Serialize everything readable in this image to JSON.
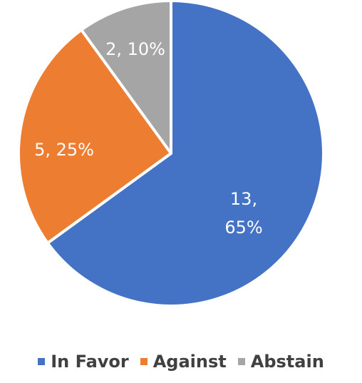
{
  "chart_data": {
    "type": "pie",
    "title": "",
    "categories": [
      "In Favor",
      "Against",
      "Abstain"
    ],
    "values": [
      13,
      5,
      2
    ],
    "percentages": [
      "65%",
      "25%",
      "10%"
    ],
    "colors": [
      "#4472C4",
      "#ED7D31",
      "#A5A5A5"
    ],
    "data_labels": [
      [
        "13,",
        "65%"
      ],
      [
        "5, 25%"
      ],
      [
        "2, 10%"
      ]
    ],
    "legend": {
      "position": "bottom",
      "entries": [
        "In Favor",
        "Against",
        "Abstain"
      ]
    }
  }
}
